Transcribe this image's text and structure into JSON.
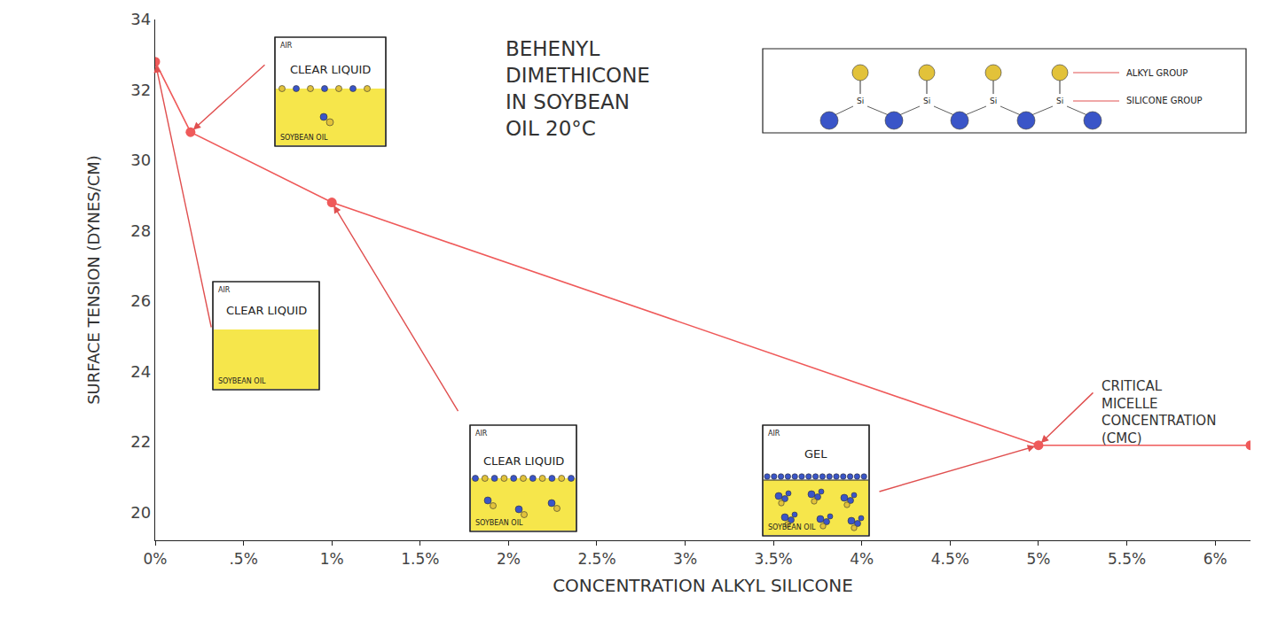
{
  "chart_data": {
    "type": "line",
    "title": "BEHENYL\nDIMETHICONE\nIN SOYBEAN\nOIL 20°C",
    "x_label": "CONCENTRATION ALKYL SILICONE",
    "y_label": "SURFACE TENSION (DYNES/CM)",
    "x": [
      0,
      0.2,
      1,
      5,
      6.2
    ],
    "values": [
      32.8,
      30.8,
      28.8,
      21.9,
      21.9
    ],
    "color": "#ef5a5a",
    "marker": "circle",
    "line_style": "solid",
    "xlim": [
      0,
      6.2
    ],
    "xticks": [
      {
        "value": 0,
        "label": "0%"
      },
      {
        "value": 0.5,
        "label": ".5%"
      },
      {
        "value": 1,
        "label": "1%"
      },
      {
        "value": 1.5,
        "label": "1.5%"
      },
      {
        "value": 2,
        "label": "2%"
      },
      {
        "value": 2.5,
        "label": "2.5%"
      },
      {
        "value": 3,
        "label": "3%"
      },
      {
        "value": 3.5,
        "label": "3.5%"
      },
      {
        "value": 4,
        "label": "4%"
      },
      {
        "value": 4.5,
        "label": "4.5%"
      },
      {
        "value": 5,
        "label": "5%"
      },
      {
        "value": 5.5,
        "label": "5.5%"
      },
      {
        "value": 6,
        "label": "6%"
      }
    ],
    "ylim": [
      19.2,
      34
    ],
    "yticks": [
      20,
      22,
      24,
      26,
      28,
      30,
      32,
      34
    ],
    "grid": false,
    "annotations": [
      {
        "text": "CRITICAL\nMICELLE\nCONCENTRATION\n(CMC)",
        "x": 5,
        "y": 21.9
      }
    ],
    "insets": [
      {
        "top": "AIR",
        "text": "CLEAR LIQUID",
        "bottom": "SOYBEAN OIL",
        "x": 0,
        "y": 32.8
      },
      {
        "top": "AIR",
        "text": "CLEAR LIQUID",
        "bottom": "SOYBEAN OIL",
        "x": 0.2,
        "y": 30.8
      },
      {
        "top": "AIR",
        "text": "CLEAR LIQUID",
        "bottom": "SOYBEAN OIL",
        "x": 1,
        "y": 28.8
      },
      {
        "top": "AIR",
        "text": "GEL",
        "bottom": "SOYBEAN OIL",
        "x": 5,
        "y": 21.9
      }
    ],
    "structure": {
      "atom": "Si",
      "labels": [
        "ALKYL GROUP",
        "SILICONE GROUP"
      ]
    }
  }
}
